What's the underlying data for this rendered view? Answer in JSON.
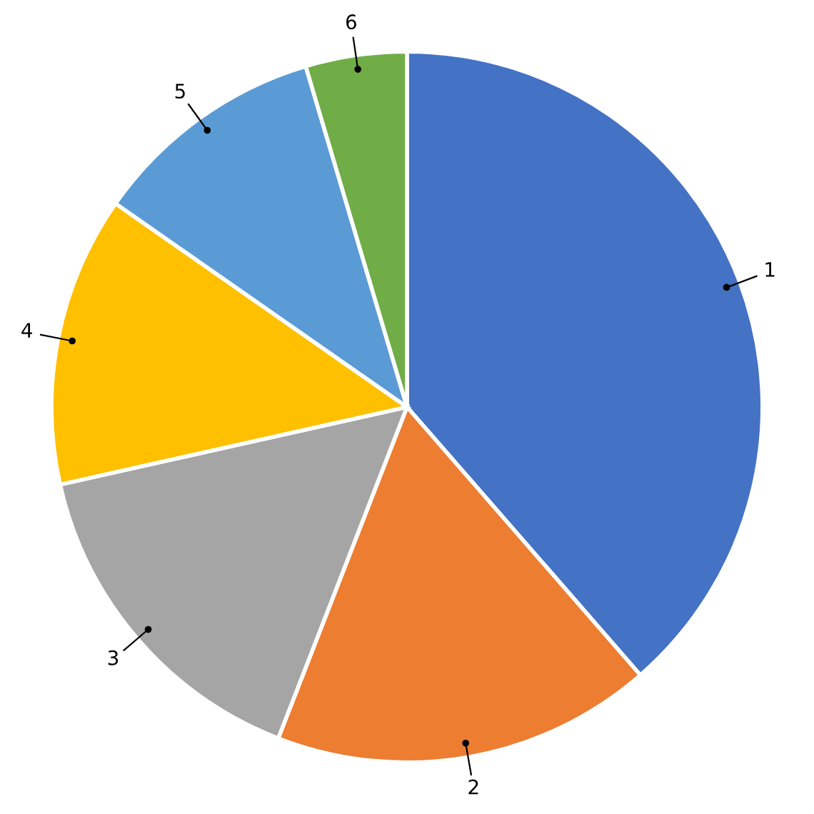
{
  "chart_data": {
    "type": "pie",
    "categories": [
      "1",
      "2",
      "3",
      "4",
      "5",
      "6"
    ],
    "values": [
      38.6,
      17.3,
      15.6,
      13.2,
      10.7,
      4.6
    ],
    "colors": [
      "#4472c4",
      "#ed7d31",
      "#a5a5a5",
      "#ffc000",
      "#5b9bd5",
      "#70ad47"
    ],
    "legend": false
  }
}
